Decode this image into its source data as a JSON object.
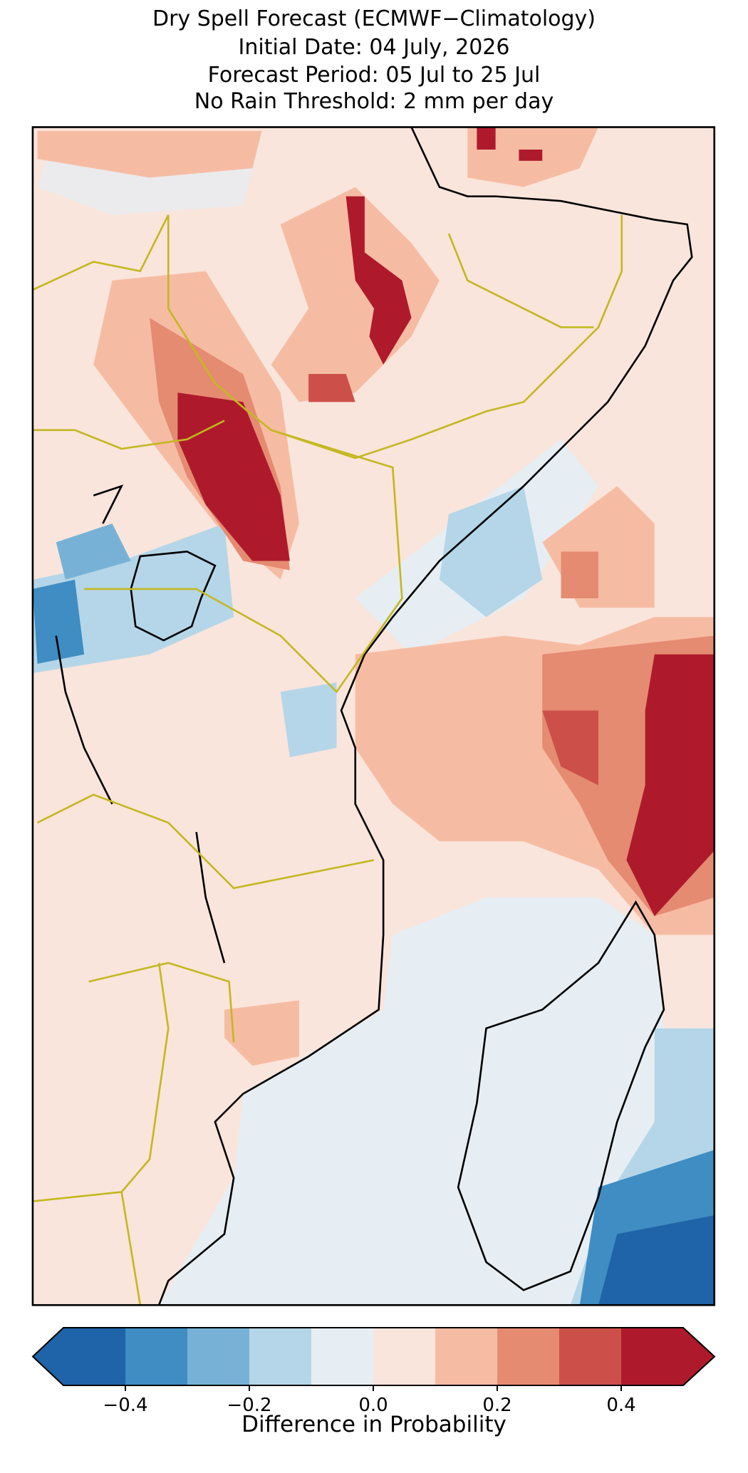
{
  "header": {
    "lines": [
      "Dry Spell Forecast (ECMWF−Climatology)",
      "Initial Date: 04 July, 2026",
      "Forecast Period: 05 Jul to 25 Jul",
      "No Rain Threshold: 2 mm per day"
    ]
  },
  "colorbar": {
    "label": "Difference in Probability",
    "vlim": [
      -0.5,
      0.5
    ],
    "extend": "both",
    "colors": [
      "#1f63a8",
      "#3f8dc2",
      "#77b2d6",
      "#b5d6e8",
      "#e6eef4",
      "#f9e5dc",
      "#f6bca3",
      "#e58b72",
      "#cc5049",
      "#ae1a2c"
    ],
    "ticks": [
      {
        "value": -0.4,
        "label": "−0.4"
      },
      {
        "value": -0.2,
        "label": "−0.2"
      },
      {
        "value": 0,
        "label": "0.0"
      },
      0.2,
      0.4
    ]
  }
}
